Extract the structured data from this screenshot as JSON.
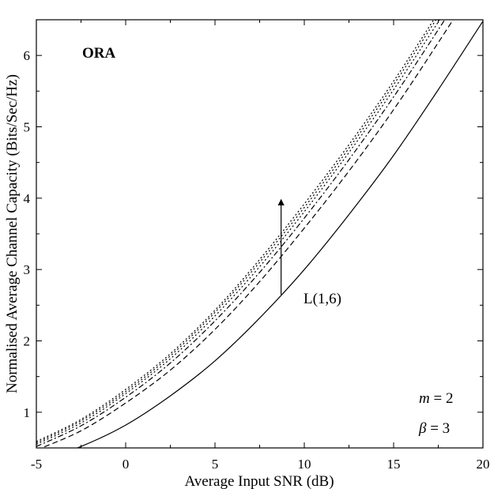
{
  "chart_data": {
    "type": "line",
    "title": "",
    "xlabel": "Average Input SNR (dB)",
    "ylabel": "Normalised Average Channel Capacity (Bits/Sec/Hz)",
    "xlim": [
      -5,
      20
    ],
    "ylim": [
      0.5,
      6.5
    ],
    "xticks": [
      -5,
      0,
      5,
      10,
      15,
      20
    ],
    "yticks": [
      1,
      2,
      3,
      4,
      5,
      6
    ],
    "grid": false,
    "legend": "none",
    "x": [
      -5,
      -2.5,
      0,
      2.5,
      5,
      7.5,
      10,
      12.5,
      15,
      17.5,
      20
    ],
    "series": [
      {
        "style": "solid",
        "values": [
          0.3,
          0.52,
          0.82,
          1.23,
          1.72,
          2.32,
          3.0,
          3.77,
          4.6,
          5.52,
          6.48
        ]
      },
      {
        "style": "dashed",
        "values": [
          0.47,
          0.74,
          1.13,
          1.59,
          2.16,
          2.83,
          3.58,
          4.38,
          5.24,
          6.18,
          7.15
        ]
      },
      {
        "style": "dashdot",
        "values": [
          0.52,
          0.81,
          1.21,
          1.69,
          2.28,
          2.96,
          3.72,
          4.54,
          5.42,
          6.36,
          7.33
        ]
      },
      {
        "style": "dotted",
        "values": [
          0.55,
          0.85,
          1.26,
          1.75,
          2.35,
          3.04,
          3.81,
          4.64,
          5.52,
          6.47,
          7.45
        ]
      },
      {
        "style": "dotted",
        "values": [
          0.57,
          0.88,
          1.29,
          1.79,
          2.4,
          3.1,
          3.87,
          4.7,
          5.59,
          6.55,
          7.53
        ]
      },
      {
        "style": "dotted",
        "values": [
          0.59,
          0.9,
          1.32,
          1.82,
          2.43,
          3.14,
          3.92,
          4.75,
          5.64,
          6.6,
          7.58
        ]
      }
    ],
    "annotations": {
      "panel_label": "ORA",
      "arrow_label": "L(1,6)",
      "arrow": {
        "x": 8.7,
        "y_from": 2.65,
        "y_to": 3.98
      },
      "m_var": "m",
      "m_rest": " = 2",
      "beta_var": "β",
      "beta_rest": " = 3"
    }
  }
}
